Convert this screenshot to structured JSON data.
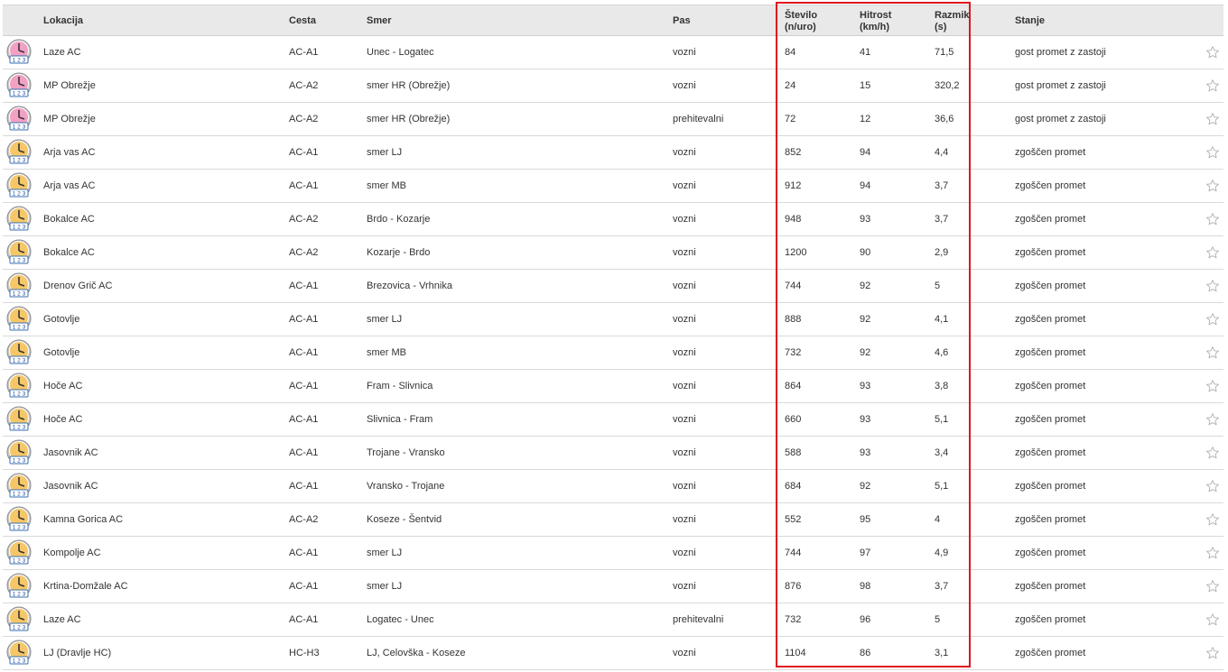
{
  "header": {
    "lokacija": "Lokacija",
    "cesta": "Cesta",
    "smer": "Smer",
    "pas": "Pas",
    "stevilo_line1": "Število",
    "stevilo_line2": "(n/uro)",
    "hitrost_line1": "Hitrost",
    "hitrost_line2": "(km/h)",
    "razmik_line1": "Razmik",
    "razmik_line2": "(s)",
    "stanje": "Stanje"
  },
  "colors": {
    "congested_icon": "#f2a0c4",
    "dense_icon": "#f5c768",
    "highlight_border": "#e0141e",
    "header_bg": "#e9e9e9"
  },
  "rows": [
    {
      "icon": "traffic-counter-congested-icon",
      "lokacija": "Laze AC",
      "cesta": "AC-A1",
      "smer": "Unec - Logatec",
      "pas": "vozni",
      "stevilo": "84",
      "hitrost": "41",
      "razmik": "71,5",
      "stanje": "gost promet z zastoji"
    },
    {
      "icon": "traffic-counter-congested-icon",
      "lokacija": "MP Obrežje",
      "cesta": "AC-A2",
      "smer": "smer HR (Obrežje)",
      "pas": "vozni",
      "stevilo": "24",
      "hitrost": "15",
      "razmik": "320,2",
      "stanje": "gost promet z zastoji"
    },
    {
      "icon": "traffic-counter-congested-icon",
      "lokacija": "MP Obrežje",
      "cesta": "AC-A2",
      "smer": "smer HR (Obrežje)",
      "pas": "prehitevalni",
      "stevilo": "72",
      "hitrost": "12",
      "razmik": "36,6",
      "stanje": "gost promet z zastoji"
    },
    {
      "icon": "traffic-counter-dense-icon",
      "lokacija": "Arja vas AC",
      "cesta": "AC-A1",
      "smer": "smer LJ",
      "pas": "vozni",
      "stevilo": "852",
      "hitrost": "94",
      "razmik": "4,4",
      "stanje": "zgoščen promet"
    },
    {
      "icon": "traffic-counter-dense-icon",
      "lokacija": "Arja vas AC",
      "cesta": "AC-A1",
      "smer": "smer MB",
      "pas": "vozni",
      "stevilo": "912",
      "hitrost": "94",
      "razmik": "3,7",
      "stanje": "zgoščen promet"
    },
    {
      "icon": "traffic-counter-dense-icon",
      "lokacija": "Bokalce AC",
      "cesta": "AC-A2",
      "smer": "Brdo - Kozarje",
      "pas": "vozni",
      "stevilo": "948",
      "hitrost": "93",
      "razmik": "3,7",
      "stanje": "zgoščen promet"
    },
    {
      "icon": "traffic-counter-dense-icon",
      "lokacija": "Bokalce AC",
      "cesta": "AC-A2",
      "smer": "Kozarje - Brdo",
      "pas": "vozni",
      "stevilo": "1200",
      "hitrost": "90",
      "razmik": "2,9",
      "stanje": "zgoščen promet"
    },
    {
      "icon": "traffic-counter-dense-icon",
      "lokacija": "Drenov Grič AC",
      "cesta": "AC-A1",
      "smer": "Brezovica - Vrhnika",
      "pas": "vozni",
      "stevilo": "744",
      "hitrost": "92",
      "razmik": "5",
      "stanje": "zgoščen promet"
    },
    {
      "icon": "traffic-counter-dense-icon",
      "lokacija": "Gotovlje",
      "cesta": "AC-A1",
      "smer": "smer LJ",
      "pas": "vozni",
      "stevilo": "888",
      "hitrost": "92",
      "razmik": "4,1",
      "stanje": "zgoščen promet"
    },
    {
      "icon": "traffic-counter-dense-icon",
      "lokacija": "Gotovlje",
      "cesta": "AC-A1",
      "smer": "smer MB",
      "pas": "vozni",
      "stevilo": "732",
      "hitrost": "92",
      "razmik": "4,6",
      "stanje": "zgoščen promet"
    },
    {
      "icon": "traffic-counter-dense-icon",
      "lokacija": "Hoče AC",
      "cesta": "AC-A1",
      "smer": "Fram - Slivnica",
      "pas": "vozni",
      "stevilo": "864",
      "hitrost": "93",
      "razmik": "3,8",
      "stanje": "zgoščen promet"
    },
    {
      "icon": "traffic-counter-dense-icon",
      "lokacija": "Hoče AC",
      "cesta": "AC-A1",
      "smer": "Slivnica - Fram",
      "pas": "vozni",
      "stevilo": "660",
      "hitrost": "93",
      "razmik": "5,1",
      "stanje": "zgoščen promet"
    },
    {
      "icon": "traffic-counter-dense-icon",
      "lokacija": "Jasovnik AC",
      "cesta": "AC-A1",
      "smer": "Trojane - Vransko",
      "pas": "vozni",
      "stevilo": "588",
      "hitrost": "93",
      "razmik": "3,4",
      "stanje": "zgoščen promet"
    },
    {
      "icon": "traffic-counter-dense-icon",
      "lokacija": "Jasovnik AC",
      "cesta": "AC-A1",
      "smer": "Vransko - Trojane",
      "pas": "vozni",
      "stevilo": "684",
      "hitrost": "92",
      "razmik": "5,1",
      "stanje": "zgoščen promet"
    },
    {
      "icon": "traffic-counter-dense-icon",
      "lokacija": "Kamna Gorica AC",
      "cesta": "AC-A2",
      "smer": "Koseze - Šentvid",
      "pas": "vozni",
      "stevilo": "552",
      "hitrost": "95",
      "razmik": "4",
      "stanje": "zgoščen promet"
    },
    {
      "icon": "traffic-counter-dense-icon",
      "lokacija": "Kompolje AC",
      "cesta": "AC-A1",
      "smer": "smer LJ",
      "pas": "vozni",
      "stevilo": "744",
      "hitrost": "97",
      "razmik": "4,9",
      "stanje": "zgoščen promet"
    },
    {
      "icon": "traffic-counter-dense-icon",
      "lokacija": "Krtina-Domžale AC",
      "cesta": "AC-A1",
      "smer": "smer LJ",
      "pas": "vozni",
      "stevilo": "876",
      "hitrost": "98",
      "razmik": "3,7",
      "stanje": "zgoščen promet"
    },
    {
      "icon": "traffic-counter-dense-icon",
      "lokacija": "Laze AC",
      "cesta": "AC-A1",
      "smer": "Logatec - Unec",
      "pas": "prehitevalni",
      "stevilo": "732",
      "hitrost": "96",
      "razmik": "5",
      "stanje": "zgoščen promet"
    },
    {
      "icon": "traffic-counter-dense-icon",
      "lokacija": "LJ (Dravlje HC)",
      "cesta": "HC-H3",
      "smer": "LJ, Celovška - Koseze",
      "pas": "vozni",
      "stevilo": "1104",
      "hitrost": "86",
      "razmik": "3,1",
      "stanje": "zgoščen promet"
    }
  ]
}
